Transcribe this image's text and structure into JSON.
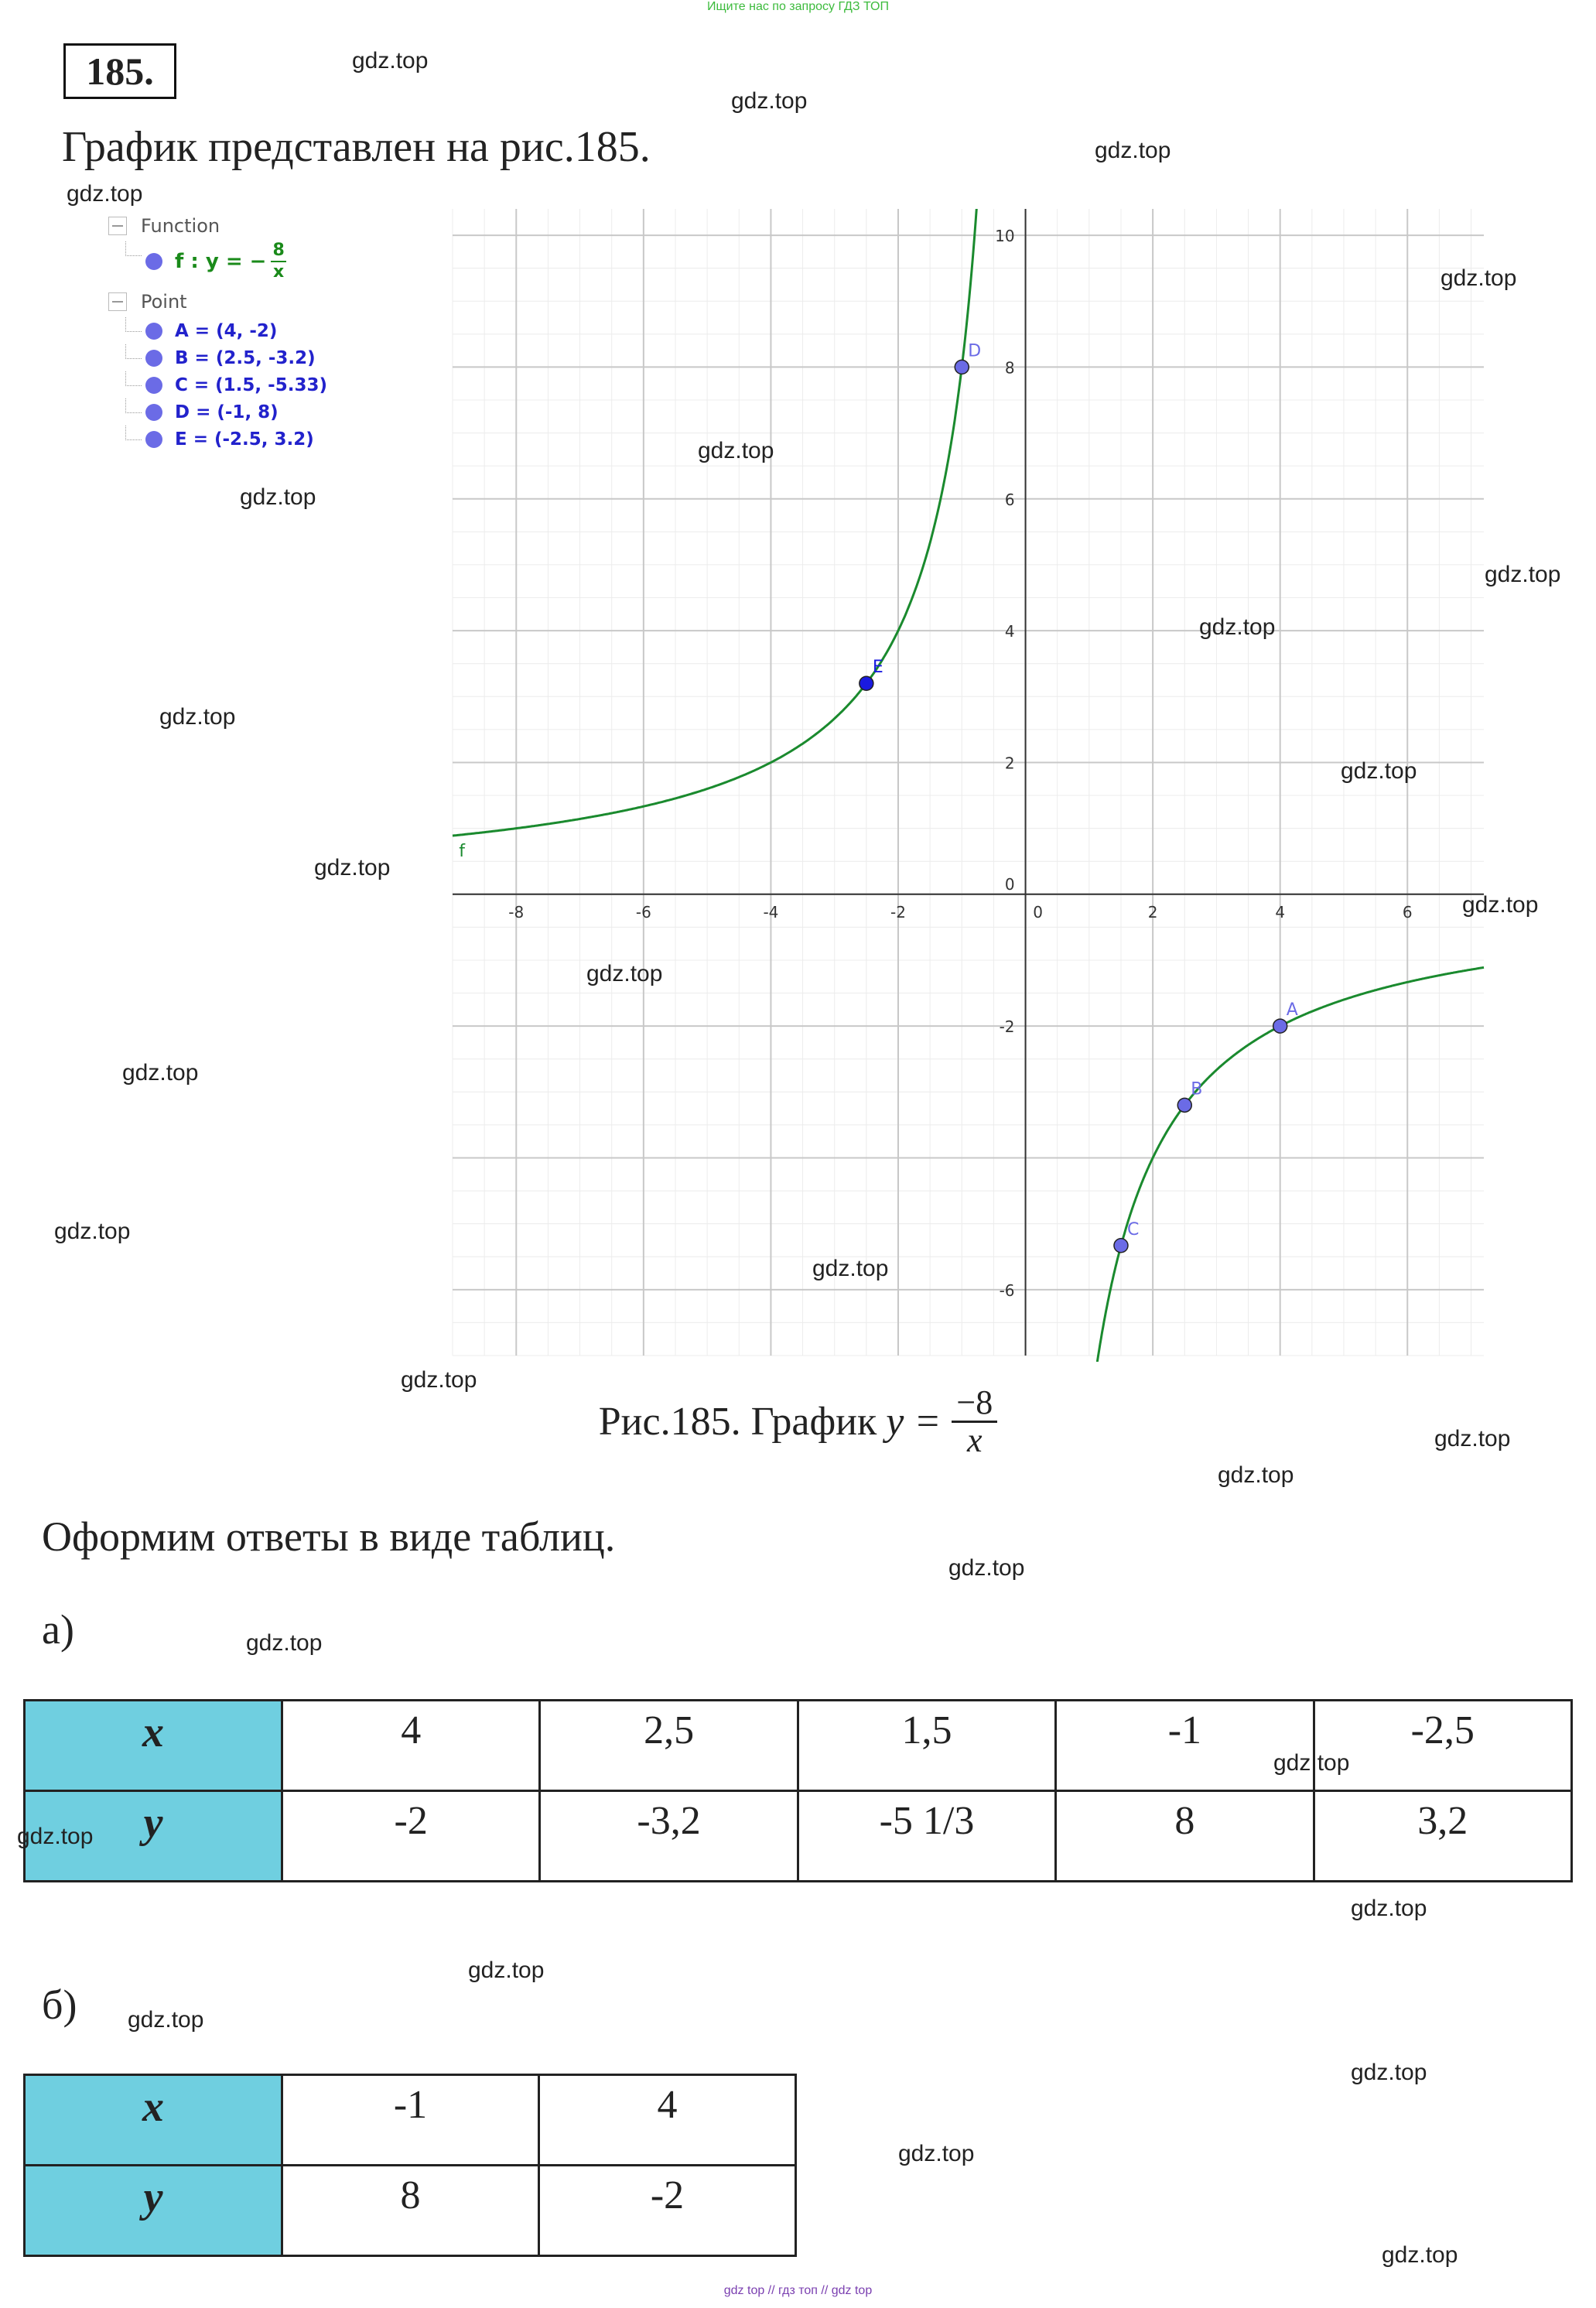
{
  "top_banner": "Ищите нас по запросу ГДЗ ТОП",
  "bottom_banner": "gdz top // гдз топ // gdz top",
  "problem_number": "185.",
  "intro_text": "График представлен на рис.185.",
  "legend": {
    "function_group": "Function",
    "function_name": "f : y = −",
    "function_num": "8",
    "function_den": "x",
    "point_group": "Point",
    "points": [
      "A = (4, -2)",
      "B = (2.5, -3.2)",
      "C = (1.5, -5.33)",
      "D = (-1, 8)",
      "E = (-2.5, 3.2)"
    ]
  },
  "chart_data": {
    "type": "line",
    "function": "y = -8/x",
    "series": [
      {
        "name": "f",
        "color": "#1a8a2e"
      }
    ],
    "points": [
      {
        "label": "A",
        "x": 4,
        "y": -2
      },
      {
        "label": "B",
        "x": 2.5,
        "y": -3.2
      },
      {
        "label": "C",
        "x": 1.5,
        "y": -5.33
      },
      {
        "label": "D",
        "x": -1,
        "y": 8
      },
      {
        "label": "E",
        "x": -2.5,
        "y": 3.2
      }
    ],
    "xlim": [
      -9,
      7.2
    ],
    "ylim": [
      -7,
      10.4
    ],
    "x_ticks": [
      "-8",
      "-6",
      "-4",
      "-2",
      "0",
      "2",
      "4",
      "6"
    ],
    "y_ticks": [
      "10",
      "8",
      "6",
      "4",
      "2",
      "0",
      "-2",
      "-6"
    ],
    "grid": true
  },
  "caption": {
    "text": "Рис.185. График",
    "lhs": "y =",
    "num": "−8",
    "den": "x"
  },
  "answers_intro": "Оформим ответы в виде таблиц.",
  "part_a": {
    "label": "а)",
    "x_header": "x",
    "y_header": "y",
    "x_values": [
      "4",
      "2,5",
      "1,5",
      "-1",
      "-2,5"
    ],
    "y_values": [
      "-2",
      "-3,2",
      "-5 1/3",
      "8",
      "3,2"
    ]
  },
  "part_b": {
    "label": "б)",
    "x_header": "x",
    "y_header": "y",
    "x_values": [
      "-1",
      "4"
    ],
    "y_values": [
      "8",
      "-2"
    ]
  },
  "watermark": "gdz.top"
}
